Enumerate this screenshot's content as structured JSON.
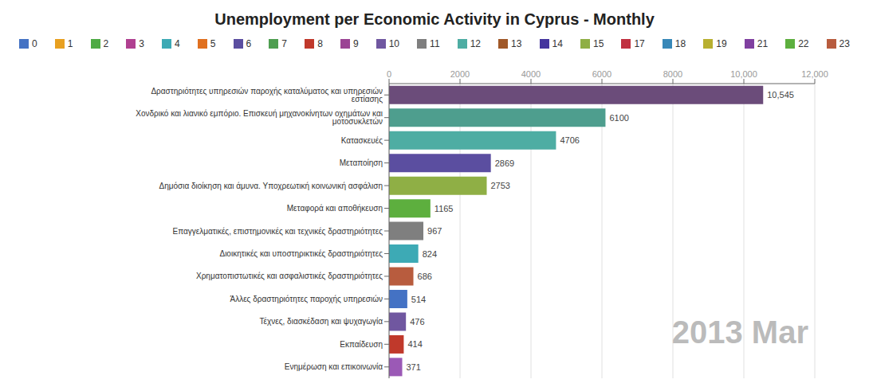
{
  "chart_data": {
    "type": "bar",
    "title": "Unemployment per Economic Activity in Cyprus - Monthly",
    "orientation": "horizontal",
    "categories": [
      "Δραστηριότητες υπηρεσιών παροχής καταλύματος και υπηρεσιών εστίασης",
      "Χονδρικό και λιανικό εμπόριο. Επισκευή μηχανοκίνητων οχημάτων και μοτοσυκλετών",
      "Κατασκευές",
      "Μεταποίηση",
      "Δημόσια διοίκηση και άμυνα. Υποχρεωτική κοινωνική ασφάλιση",
      "Μεταφορά και αποθήκευση",
      "Επαγγελματικές, επιστημονικές και τεχνικές δραστηριότητες",
      "Διοικητικές και υποστηρικτικές δραστηριότητες",
      "Χρηματοπιστωτικές και ασφαλιστικές δραστηριότητες",
      "Άλλες δραστηριότητες παροχής υπηρεσιών",
      "Τέχνες, διασκέδαση και ψυχαγωγία",
      "Εκπαίδευση",
      "Ενημέρωση και επικοινωνία"
    ],
    "values": [
      10545,
      6100,
      4706,
      2869,
      2753,
      1165,
      967,
      824,
      686,
      514,
      476,
      414,
      371
    ],
    "value_labels": [
      "10,545",
      "6100",
      "4706",
      "2869",
      "2753",
      "1165",
      "967",
      "824",
      "686",
      "514",
      "476",
      "414",
      "371"
    ],
    "data_labels": true,
    "colors": [
      "#6b4c7a",
      "#4e9e8e",
      "#4eada3",
      "#5b4ea0",
      "#8faf45",
      "#5daf3e",
      "#7f7f7f",
      "#3daab5",
      "#b85c3e",
      "#4472c4",
      "#7057a0",
      "#c0392b",
      "#9b59b6"
    ],
    "xlim": [
      0,
      12000
    ],
    "xticks": [
      0,
      2000,
      4000,
      6000,
      8000,
      {
        "value": 10000,
        "label": "10,000"
      },
      {
        "value": 12000,
        "label": "12,000"
      }
    ],
    "grid": true,
    "legend": "top",
    "legend_entries": [
      {
        "label": "0",
        "color": "#4472c4"
      },
      {
        "label": "1",
        "color": "#e8a020"
      },
      {
        "label": "2",
        "color": "#4eaa44"
      },
      {
        "label": "3",
        "color": "#b04090"
      },
      {
        "label": "4",
        "color": "#3daab5"
      },
      {
        "label": "5",
        "color": "#e07020"
      },
      {
        "label": "6",
        "color": "#5b4ea0"
      },
      {
        "label": "7",
        "color": "#4e9e50"
      },
      {
        "label": "8",
        "color": "#c0392b"
      },
      {
        "label": "9",
        "color": "#9b4494"
      },
      {
        "label": "10",
        "color": "#7057a0"
      },
      {
        "label": "11",
        "color": "#7f7f7f"
      },
      {
        "label": "12",
        "color": "#4eada3"
      },
      {
        "label": "13",
        "color": "#a05828"
      },
      {
        "label": "14",
        "color": "#44349e"
      },
      {
        "label": "15",
        "color": "#8faf45"
      },
      {
        "label": "17",
        "color": "#c03040"
      },
      {
        "label": "18",
        "color": "#3888b8"
      },
      {
        "label": "19",
        "color": "#b8b030"
      },
      {
        "label": "21",
        "color": "#8040a0"
      },
      {
        "label": "22",
        "color": "#5daf3e"
      },
      {
        "label": "23",
        "color": "#b85c3e"
      }
    ],
    "annotations": [
      {
        "text": "2013 Mar",
        "color": "#bbbbbb"
      }
    ]
  }
}
